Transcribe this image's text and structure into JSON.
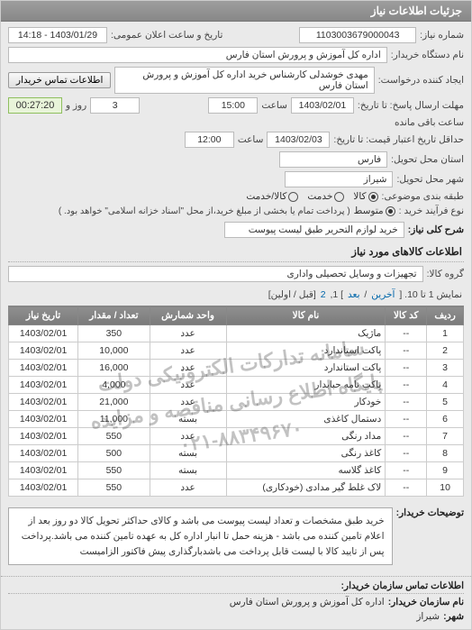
{
  "header": {
    "title": "جزئیات اطلاعات نیاز"
  },
  "info": {
    "reqno_label": "شماره نیاز:",
    "reqno": "1103003679000043",
    "announce_label": "تاریخ و ساعت اعلان عمومی:",
    "announce_val": "1403/01/29 - 14:18",
    "buyer_label": "نام دستگاه خریدار:",
    "buyer": "اداره کل آموزش و پرورش استان فارس",
    "requester_label": "ایجاد کننده درخواست:",
    "requester": "مهدی خوشدلی کارشناس خرید اداره کل آموزش و پرورش استان فارس",
    "contact_btn": "اطلاعات تماس خریدار",
    "deadline_resp_label": "مهلت ارسال پاسخ: تا تاریخ:",
    "deadline_resp_date": "1403/02/01",
    "deadline_resp_time_lbl": "ساعت",
    "deadline_resp_time": "15:00",
    "remain_days": "3",
    "remain_days_lbl": "روز و",
    "remain_time": "00:27:20",
    "remain_suffix": "ساعت باقی مانده",
    "price_deadline_label": "حداقل تاریخ اعتبار قیمت: تا تاریخ:",
    "price_deadline_date": "1403/02/03",
    "price_deadline_time": "12:00",
    "province_label": "استان محل تحویل:",
    "province": "فارس",
    "city_label": "شهر محل تحویل:",
    "city": "شیراز",
    "pack_label": "طبقه بندی موضوعی:",
    "pack_opts": [
      "کالا",
      "خدمت",
      "کالا/خدمت"
    ],
    "pack_selected": 0,
    "buytype_label": "نوع فرآیند خرید :",
    "buytype_opts": [
      "متوسط"
    ],
    "buytype_note": "( پرداخت تمام یا بخشی از مبلغ خرید،از محل \"اسناد خزانه اسلامی\" خواهد بود. )",
    "desc_label": "شرح کلی نیاز:",
    "desc_val": "خرید لوازم التحریر طبق لیست پیوست"
  },
  "items": {
    "title": "اطلاعات کالاهای مورد نیاز",
    "group_label": "گروه کالا:",
    "group_val": "تجهیزات و وسایل تحصیلی واداری",
    "pager_text_a": "نمایش 1 تا 10. [ ",
    "pager_prev": "آخرین",
    "pager_sep": " / ",
    "pager_next": "بعد",
    "pager_text_b": " ] 1, ",
    "pager_2": "2",
    "pager_text_c": " [قبل / اولین]",
    "cols": [
      "ردیف",
      "کد کالا",
      "نام کالا",
      "واحد شمارش",
      "تعداد / مقدار",
      "تاریخ نیاز"
    ],
    "rows": [
      [
        "1",
        "--",
        "ماژیک",
        "عدد",
        "350",
        "1403/02/01"
      ],
      [
        "2",
        "--",
        "پاکت استاندارد",
        "عدد",
        "10,000",
        "1403/02/01"
      ],
      [
        "3",
        "--",
        "پاکت استاندارد",
        "عدد",
        "16,000",
        "1403/02/01"
      ],
      [
        "4",
        "--",
        "پاکت نامه حبابدار",
        "عدد",
        "4,000",
        "1403/02/01"
      ],
      [
        "5",
        "--",
        "خودکار",
        "عدد",
        "21,000",
        "1403/02/01"
      ],
      [
        "6",
        "--",
        "دستمال کاغذی",
        "بسته",
        "11,000",
        "1403/02/01"
      ],
      [
        "7",
        "--",
        "مداد رنگی",
        "عدد",
        "550",
        "1403/02/01"
      ],
      [
        "8",
        "--",
        "کاغذ رنگی",
        "بسته",
        "500",
        "1403/02/01"
      ],
      [
        "9",
        "--",
        "کاغذ گلاسه",
        "بسته",
        "550",
        "1403/02/01"
      ],
      [
        "10",
        "--",
        "لاک غلط گیر مدادی (خودکاری)",
        "عدد",
        "550",
        "1403/02/01"
      ]
    ],
    "watermark_line1": "سامانه تدارکات الکترونیکی دولت",
    "watermark_line2": "پایگاه اطلاع رسانی مناقصه و مزایده",
    "watermark_line3": "۰۲۱-۸۸۳۴۹۶۷۰"
  },
  "note": {
    "label": "توضیحات خریدار:",
    "text": "خرید طبق مشخصات و تعداد لیست پیوست می باشد و کالای حداکثر تحویل کالا دو روز بعد از اعلام تامین کننده می باشد - هزینه حمل تا انبار اداره کل به عهده تامین کننده می باشد.پرداخت پس از تایید کالا با لیست قابل پرداخت می باشدبارگذاری پیش فاکتور الزامیست"
  },
  "contact": {
    "title": "اطلاعات تماس سازمان خریدار:",
    "org_label": "نام سازمان خریدار:",
    "org_val": "اداره کل آموزش و پرورش استان فارس",
    "city_label": "شهر:",
    "city_val": "شیراز"
  }
}
